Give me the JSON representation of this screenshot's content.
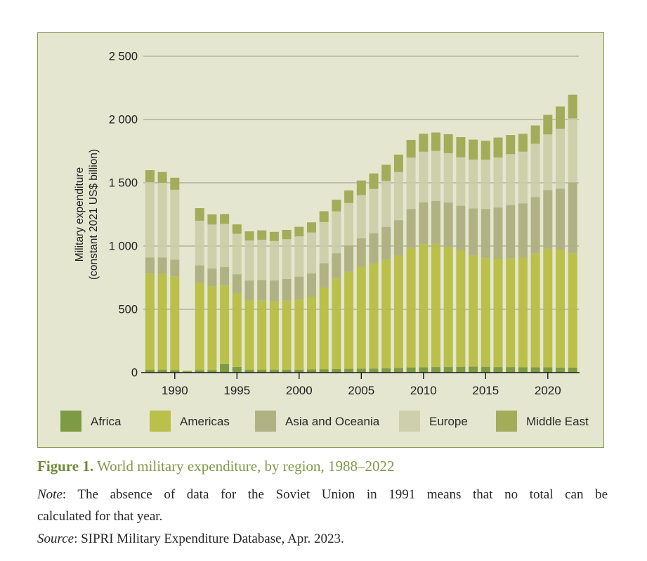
{
  "figure": {
    "panel_bg": "#e4e6cf",
    "panel_border": "#89994f",
    "gridline_color": "#a6a699",
    "axis_color": "#1a1a1a",
    "text_color": "#1f1f1f"
  },
  "chart_data": {
    "type": "bar",
    "stacked": true,
    "title": "",
    "ylabel_line1": "Military expenditure",
    "ylabel_line2": "(constant 2021 US$ billion)",
    "xlabel": "",
    "ylim": [
      0,
      2500
    ],
    "grid": true,
    "legend_position": "bottom",
    "ytick_values": [
      0,
      500,
      1000,
      1500,
      2000,
      2500
    ],
    "ytick_labels": [
      "0",
      "500",
      "1 000",
      "1 500",
      "2 000",
      "2 500"
    ],
    "xtick_years": [
      1990,
      1995,
      2000,
      2005,
      2010,
      2015,
      2020
    ],
    "xtick_labels": [
      "1990",
      "1995",
      "2000",
      "2005",
      "2010",
      "2015",
      "2020"
    ],
    "years": [
      1988,
      1989,
      1990,
      1991,
      1992,
      1993,
      1994,
      1995,
      1996,
      1997,
      1998,
      1999,
      2000,
      2001,
      2002,
      2003,
      2004,
      2005,
      2006,
      2007,
      2008,
      2009,
      2010,
      2011,
      2012,
      2013,
      2014,
      2015,
      2016,
      2017,
      2018,
      2019,
      2020,
      2021,
      2022
    ],
    "missing_year": 1991,
    "series": [
      {
        "name": "Africa",
        "color": "#7d9b44",
        "values": [
          22,
          22,
          20,
          10,
          20,
          20,
          68,
          45,
          22,
          22,
          22,
          23,
          24,
          25,
          27,
          28,
          30,
          31,
          32,
          34,
          37,
          41,
          43,
          44,
          44,
          46,
          48,
          46,
          44,
          44,
          42,
          42,
          42,
          40,
          40
        ]
      },
      {
        "name": "Americas",
        "color": "#bac04a",
        "values": [
          760,
          758,
          740,
          5,
          690,
          662,
          620,
          580,
          550,
          548,
          540,
          545,
          557,
          575,
          645,
          715,
          765,
          805,
          828,
          858,
          888,
          943,
          973,
          973,
          948,
          918,
          878,
          858,
          856,
          860,
          866,
          898,
          938,
          933,
          903
        ]
      },
      {
        "name": "Asia and Oceania",
        "color": "#b1b284",
        "values": [
          128,
          130,
          132,
          0,
          138,
          142,
          147,
          152,
          157,
          162,
          166,
          171,
          177,
          185,
          193,
          201,
          210,
          225,
          242,
          260,
          280,
          310,
          330,
          340,
          352,
          355,
          372,
          390,
          405,
          420,
          430,
          448,
          462,
          480,
          560
        ]
      },
      {
        "name": "Europe",
        "color": "#cdd0ab",
        "values": [
          595,
          590,
          553,
          0,
          352,
          346,
          340,
          320,
          315,
          318,
          312,
          315,
          318,
          322,
          325,
          330,
          335,
          342,
          350,
          362,
          380,
          405,
          400,
          395,
          390,
          382,
          385,
          388,
          395,
          402,
          408,
          420,
          440,
          475,
          505
        ]
      },
      {
        "name": "Middle East",
        "color": "#a3ac58",
        "values": [
          95,
          85,
          95,
          0,
          100,
          80,
          78,
          74,
          72,
          74,
          72,
          74,
          76,
          80,
          85,
          92,
          100,
          115,
          122,
          128,
          138,
          140,
          142,
          145,
          150,
          160,
          158,
          150,
          158,
          151,
          141,
          145,
          155,
          175,
          188
        ]
      }
    ]
  },
  "caption": {
    "label": "Figure 1.",
    "text": " World military expenditure, by region, 1988–2022"
  },
  "note": {
    "label": "Note",
    "line1_rest": ": The absence of data for the Soviet Union in 1991 means that no total can be",
    "line2": "calculated for that year."
  },
  "source": {
    "label": "Source",
    "text": ": SIPRI Military Expenditure Database, Apr. 2023."
  }
}
